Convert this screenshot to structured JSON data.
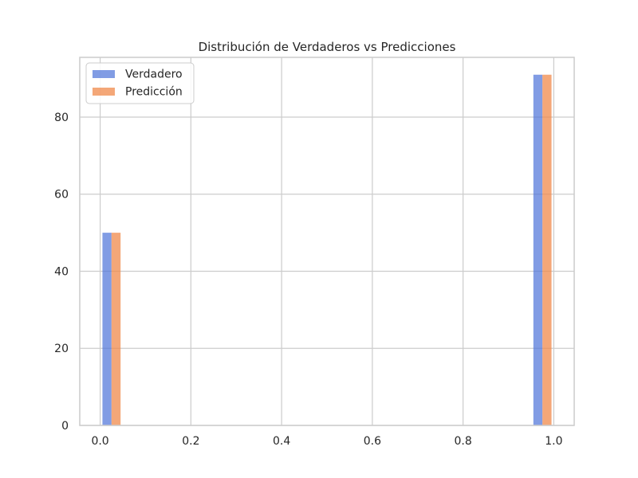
{
  "chart_data": {
    "type": "bar",
    "title": "Distribución de Verdaderos vs Predicciones",
    "xlabel": "",
    "ylabel": "",
    "xlim": [
      -0.045,
      1.045
    ],
    "ylim": [
      0,
      95.5
    ],
    "xticks": [
      0.0,
      0.2,
      0.4,
      0.6,
      0.8,
      1.0
    ],
    "xtick_labels": [
      "0.0",
      "0.2",
      "0.4",
      "0.6",
      "0.8",
      "1.0"
    ],
    "yticks": [
      0,
      20,
      40,
      60,
      80
    ],
    "ytick_labels": [
      "0",
      "20",
      "40",
      "60",
      "80"
    ],
    "grid": true,
    "legend": "upper-left",
    "series": [
      {
        "name": "Verdadero",
        "color": "#4c72d9",
        "bars": [
          {
            "x_start": 0.005,
            "x_end": 0.025,
            "value": 50
          },
          {
            "x_start": 0.955,
            "x_end": 0.975,
            "value": 91
          }
        ]
      },
      {
        "name": "Predicción",
        "color": "#f08a4b",
        "bars": [
          {
            "x_start": 0.025,
            "x_end": 0.045,
            "value": 50
          },
          {
            "x_start": 0.975,
            "x_end": 0.995,
            "value": 91
          }
        ]
      }
    ]
  }
}
